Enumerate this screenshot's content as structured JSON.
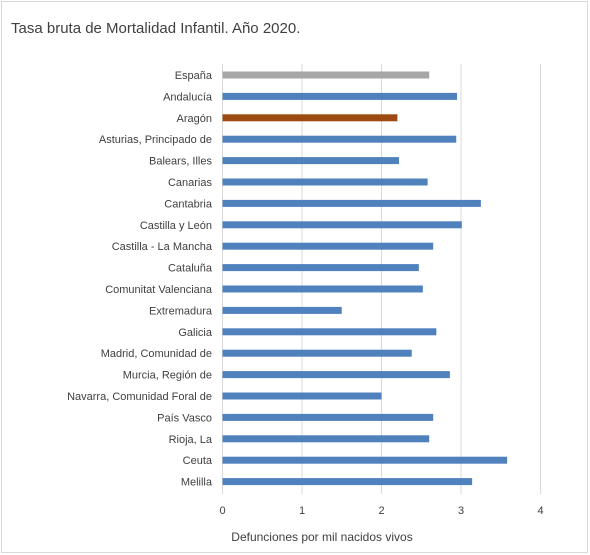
{
  "chart_data": {
    "type": "bar",
    "orientation": "horizontal",
    "title": "Tasa bruta de Mortalidad Infantil. Año 2020.",
    "xlabel": "Defunciones por mil nacidos vivos",
    "ylabel": "",
    "xlim": [
      0,
      4
    ],
    "ticks": [
      "0",
      "1",
      "2",
      "3",
      "4"
    ],
    "grid": "vertical",
    "legend": "none",
    "colors": {
      "default": "#4f81bd",
      "espana": "#a6a6a6",
      "aragon": "#9c4a12",
      "grid": "#d9d9d9",
      "text": "#404040"
    },
    "bars": [
      {
        "label": "España",
        "value": 2.6,
        "color": "#a6a6a6"
      },
      {
        "label": "Andalucía",
        "value": 2.95,
        "color": "#4f81bd"
      },
      {
        "label": "Aragón",
        "value": 2.2,
        "color": "#9c4a12"
      },
      {
        "label": "Asturias, Principado de",
        "value": 2.94,
        "color": "#4f81bd"
      },
      {
        "label": "Balears, Illes",
        "value": 2.22,
        "color": "#4f81bd"
      },
      {
        "label": "Canarias",
        "value": 2.58,
        "color": "#4f81bd"
      },
      {
        "label": "Cantabria",
        "value": 3.25,
        "color": "#4f81bd"
      },
      {
        "label": "Castilla y León",
        "value": 3.01,
        "color": "#4f81bd"
      },
      {
        "label": "Castilla - La Mancha",
        "value": 2.65,
        "color": "#4f81bd"
      },
      {
        "label": "Cataluña",
        "value": 2.47,
        "color": "#4f81bd"
      },
      {
        "label": "Comunitat Valenciana",
        "value": 2.52,
        "color": "#4f81bd"
      },
      {
        "label": "Extremadura",
        "value": 1.5,
        "color": "#4f81bd"
      },
      {
        "label": "Galicia",
        "value": 2.69,
        "color": "#4f81bd"
      },
      {
        "label": "Madrid, Comunidad de",
        "value": 2.38,
        "color": "#4f81bd"
      },
      {
        "label": "Murcia, Región de",
        "value": 2.86,
        "color": "#4f81bd"
      },
      {
        "label": "Navarra, Comunidad Foral de",
        "value": 2.0,
        "color": "#4f81bd"
      },
      {
        "label": "País Vasco",
        "value": 2.65,
        "color": "#4f81bd"
      },
      {
        "label": "Rioja, La",
        "value": 2.6,
        "color": "#4f81bd"
      },
      {
        "label": "Ceuta",
        "value": 3.58,
        "color": "#4f81bd"
      },
      {
        "label": "Melilla",
        "value": 3.14,
        "color": "#4f81bd"
      }
    ]
  }
}
